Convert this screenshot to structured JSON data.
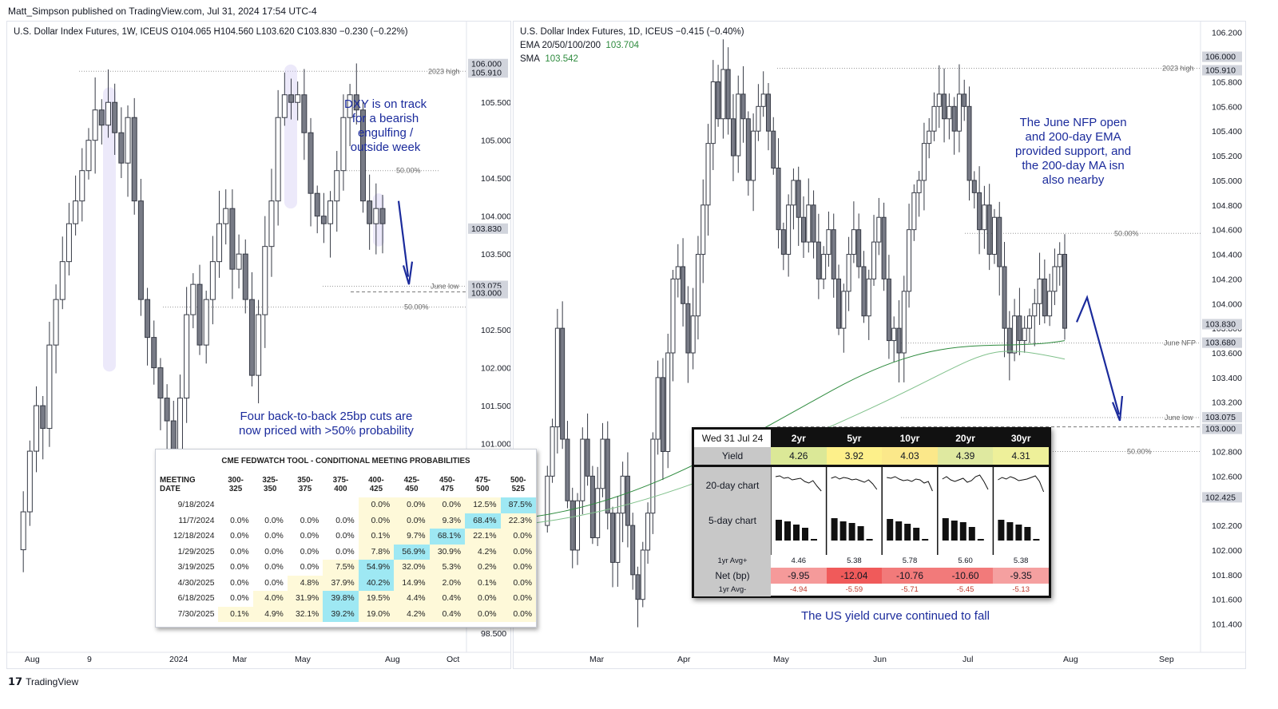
{
  "header": {
    "text": "Matt_Simpson published on TradingView.com, Jul 31, 2024 17:54 UTC-4"
  },
  "footer": {
    "brand": "TradingView"
  },
  "left_chart": {
    "legend": "U.S. Dollar Index Futures, 1W, ICEUS  O104.065  H104.560  L103.620  C103.830  −0.230 (−0.22%)",
    "y_ticks": [
      "105.500",
      "105.000",
      "104.500",
      "104.000",
      "103.500",
      "102.500",
      "102.000",
      "101.500",
      "101.000",
      "98.500"
    ],
    "x_ticks": [
      "Aug",
      "9",
      "2024",
      "Mar",
      "May",
      "Aug",
      "Oct"
    ],
    "price_tags": [
      "106.000",
      "105.910",
      "103.830",
      "103.075",
      "103.000"
    ],
    "line_labels": {
      "high_2023": "2023 high",
      "june_low": "June low",
      "fib_a": "50.00%",
      "fib_b": "50.00%"
    },
    "notes": {
      "dxy": "DXY is on track\nfor a bearish\nengulfing /\noutside week",
      "cuts": "Four back-to-back 25bp cuts are\nnow priced with >50% probability"
    }
  },
  "right_chart": {
    "legend_1": "U.S. Dollar Index Futures, 1D, ICEUS  −0.415 (−0.40%)",
    "legend_2_label": "EMA 20/50/100/200",
    "legend_2_value": "103.704",
    "legend_3_label": "SMA",
    "legend_3_value": "103.542",
    "y_ticks": [
      "106.200",
      "105.800",
      "105.600",
      "105.400",
      "105.200",
      "105.000",
      "104.800",
      "104.600",
      "104.400",
      "104.200",
      "104.000",
      "103.800",
      "103.600",
      "103.400",
      "103.200",
      "102.800",
      "102.600",
      "102.200",
      "102.000",
      "101.800",
      "101.600",
      "101.400"
    ],
    "x_ticks": [
      "Mar",
      "Apr",
      "May",
      "Jun",
      "Jul",
      "Aug",
      "Sep"
    ],
    "price_tags": [
      "106.000",
      "105.910",
      "103.830",
      "103.680",
      "103.075",
      "103.000",
      "102.425"
    ],
    "line_labels": {
      "high_2023": "2023 high",
      "fib": "50.00%",
      "june_nfp": "June NFP",
      "june_low": "June low",
      "fib_b": "50.00%"
    },
    "notes": {
      "nfp": "The June NFP open\nand 200-day EMA\nprovided support, and\nthe 200-day MA isn\nalso nearby",
      "yield": "The US yield curve continued to fall"
    }
  },
  "fedwatch": {
    "title": "CME FEDWATCH TOOL - CONDITIONAL MEETING PROBABILITIES",
    "columns": [
      "MEETING DATE",
      "300-325",
      "325-350",
      "350-375",
      "375-400",
      "400-425",
      "425-450",
      "450-475",
      "475-500",
      "500-525"
    ],
    "rows": [
      [
        "9/18/2024",
        "",
        "",
        "",
        "",
        "0.0%",
        "0.0%",
        "0.0%",
        "12.5%",
        "87.5%"
      ],
      [
        "11/7/2024",
        "0.0%",
        "0.0%",
        "0.0%",
        "0.0%",
        "0.0%",
        "0.0%",
        "9.3%",
        "68.4%",
        "22.3%"
      ],
      [
        "12/18/2024",
        "0.0%",
        "0.0%",
        "0.0%",
        "0.0%",
        "0.1%",
        "9.7%",
        "68.1%",
        "22.1%",
        "0.0%"
      ],
      [
        "1/29/2025",
        "0.0%",
        "0.0%",
        "0.0%",
        "0.0%",
        "7.8%",
        "56.9%",
        "30.9%",
        "4.2%",
        "0.0%"
      ],
      [
        "3/19/2025",
        "0.0%",
        "0.0%",
        "0.0%",
        "7.5%",
        "54.9%",
        "32.0%",
        "5.3%",
        "0.2%",
        "0.0%"
      ],
      [
        "4/30/2025",
        "0.0%",
        "0.0%",
        "4.8%",
        "37.9%",
        "40.2%",
        "14.9%",
        "2.0%",
        "0.1%",
        "0.0%"
      ],
      [
        "6/18/2025",
        "0.0%",
        "4.0%",
        "31.9%",
        "39.8%",
        "19.5%",
        "4.4%",
        "0.4%",
        "0.0%",
        "0.0%"
      ],
      [
        "7/30/2025",
        "0.1%",
        "4.9%",
        "32.1%",
        "39.2%",
        "19.0%",
        "4.2%",
        "0.4%",
        "0.0%",
        "0.0%"
      ]
    ]
  },
  "yields": {
    "date": "Wed 31 Jul 24",
    "tenors": [
      "2yr",
      "5yr",
      "10yr",
      "20yr",
      "30yr"
    ],
    "row_yield_label": "Yield",
    "yield": [
      "4.26",
      "3.92",
      "4.03",
      "4.39",
      "4.31"
    ],
    "label_20d": "20-day chart",
    "label_5d": "5-day chart",
    "avg_plus_label": "1yr Avg+",
    "avg_plus": [
      "4.46",
      "5.38",
      "5.78",
      "5.60",
      "5.38"
    ],
    "net_label": "Net (bp)",
    "net": [
      "-9.95",
      "-12.04",
      "-10.76",
      "-10.60",
      "-9.35"
    ],
    "avg_minus_label": "1yr Avg-",
    "avg_minus": [
      "-4.94",
      "-5.59",
      "-5.71",
      "-5.45",
      "-5.13"
    ]
  },
  "chart_data": [
    {
      "type": "candlestick",
      "title": "U.S. Dollar Index Futures, 1W, ICEUS",
      "ohlc_last": {
        "open": 104.065,
        "high": 104.56,
        "low": 103.62,
        "close": 103.83
      },
      "ylim": [
        98.5,
        106.2
      ],
      "levels": {
        "2023 high": 105.91,
        "June low": 103.075
      },
      "x": [
        "Aug",
        "9",
        "2024",
        "Mar",
        "May",
        "Aug",
        "Oct"
      ]
    },
    {
      "type": "candlestick",
      "title": "U.S. Dollar Index Futures, 1D, ICEUS",
      "change": "−0.415 (−0.40%)",
      "ylim": [
        101.3,
        106.2
      ],
      "series": [
        {
          "name": "EMA 20/50/100/200",
          "last": 103.704
        },
        {
          "name": "SMA",
          "last": 103.542
        }
      ],
      "levels": {
        "2023 high": 105.91,
        "June NFP": 103.68,
        "June low": 103.075
      },
      "x": [
        "Mar",
        "Apr",
        "May",
        "Jun",
        "Jul",
        "Aug",
        "Sep"
      ]
    }
  ]
}
